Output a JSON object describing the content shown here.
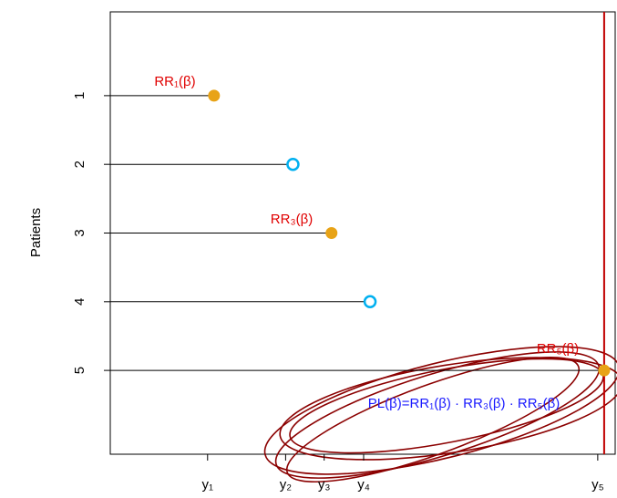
{
  "chart_data": {
    "type": "followup",
    "y_label": "Patients",
    "categories": [
      "1",
      "2",
      "3",
      "4",
      "5"
    ],
    "values": [
      1.13,
      1.99,
      2.41,
      2.83,
      5.38
    ],
    "events": [
      true,
      false,
      true,
      false,
      true
    ],
    "event_color": "#e8a317",
    "censor_color": "#00b0f0",
    "line_color": "#c00000",
    "xlim": [
      0,
      5.5
    ],
    "xticks": [
      {
        "value": 1.06,
        "label": "y₁"
      },
      {
        "value": 1.91,
        "label": "y₂"
      },
      {
        "value": 2.33,
        "label": "y₃"
      },
      {
        "value": 2.76,
        "label": "y₄"
      },
      {
        "value": 5.31,
        "label": "y₅"
      }
    ],
    "ylim": [
      6.22,
      -0.22
    ],
    "annotations": [
      "RR₁(β)",
      "RR₃(β)",
      "RR₅(β)",
      "PL(β)=RR₁(β) · RR₃(β) · RR₅(β)"
    ]
  }
}
